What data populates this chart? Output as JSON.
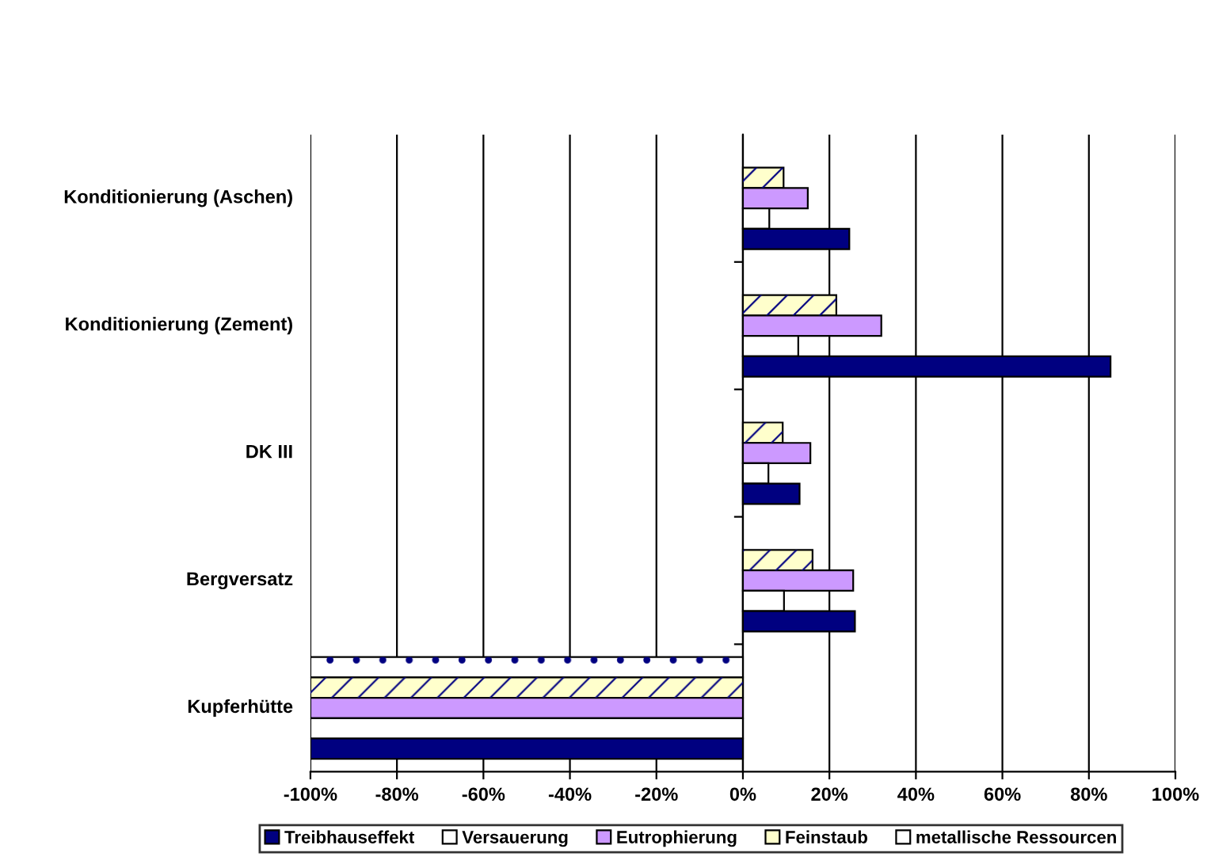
{
  "chart_data": {
    "type": "bar",
    "orientation": "horizontal",
    "categories": [
      "Konditionierung (Aschen)",
      "Konditionierung (Zement)",
      "DK III",
      "Bergversatz",
      "Kupferhütte"
    ],
    "series": [
      {
        "name": "metallische Ressourcen",
        "color": "#ffffff",
        "values": [
          null,
          null,
          null,
          null,
          -100
        ]
      },
      {
        "name": "Feinstaub",
        "color": "#ffffcc",
        "values": [
          9.4,
          21.6,
          9.2,
          16.1,
          -100
        ]
      },
      {
        "name": "Eutrophierung",
        "color": "#cc99ff",
        "values": [
          15.0,
          32.0,
          15.6,
          25.5,
          -100
        ]
      },
      {
        "name": "Versauerung",
        "color": "#ffffff",
        "values": [
          6.1,
          12.8,
          5.9,
          9.5,
          -100
        ]
      },
      {
        "name": "Treibhauseffekt",
        "color": "#000080",
        "values": [
          24.6,
          85.0,
          13.1,
          25.9,
          -100
        ]
      }
    ],
    "xlim": [
      -100,
      100
    ],
    "xticks": [
      {
        "value": -100,
        "label": "-100%"
      },
      {
        "value": -80,
        "label": "-80%"
      },
      {
        "value": -60,
        "label": "-60%"
      },
      {
        "value": -40,
        "label": "-40%"
      },
      {
        "value": -20,
        "label": "-20%"
      },
      {
        "value": 0,
        "label": "0%"
      },
      {
        "value": 20,
        "label": "20%"
      },
      {
        "value": 40,
        "label": "40%"
      },
      {
        "value": 60,
        "label": "60%"
      },
      {
        "value": 80,
        "label": "80%"
      },
      {
        "value": 100,
        "label": "100%"
      }
    ],
    "grid": "x",
    "legend": "bottom"
  }
}
